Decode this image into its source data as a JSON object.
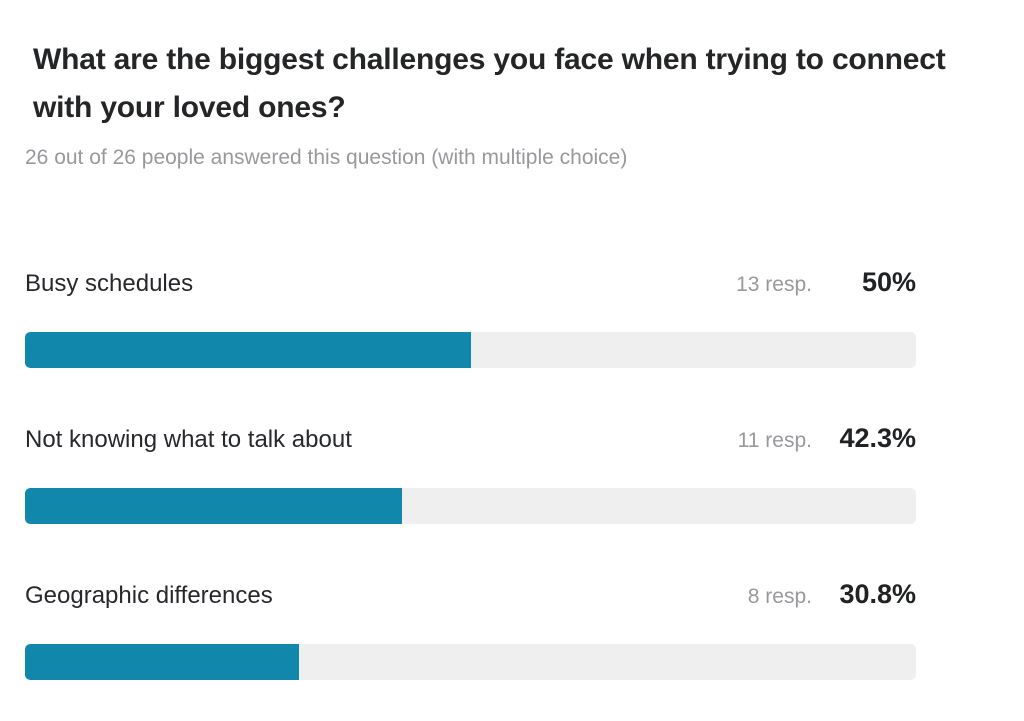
{
  "question": {
    "title": "What are the biggest challenges you face when trying to connect with your loved ones?",
    "subtitle": "26 out of 26 people answered this question (with multiple choice)"
  },
  "chart_data": {
    "type": "bar",
    "orientation": "horizontal",
    "title": "What are the biggest challenges you face when trying to connect with your loved ones?",
    "answered": 26,
    "total_people": 26,
    "categories": [
      "Busy schedules",
      "Not knowing what to talk about",
      "Geographic differences"
    ],
    "series": [
      {
        "name": "responses",
        "values": [
          13,
          11,
          8
        ]
      },
      {
        "name": "percentage",
        "values": [
          50,
          42.3,
          30.8
        ]
      }
    ],
    "xlim": [
      0,
      100
    ],
    "bar_color": "#1287AC",
    "track_color": "#EFEFF0",
    "grid": false,
    "legend": false
  },
  "rows": [
    {
      "label": "Busy schedules",
      "resp": "13 resp.",
      "percent": "50%",
      "value": 50
    },
    {
      "label": "Not knowing what to talk about",
      "resp": "11 resp.",
      "percent": "42.3%",
      "value": 42.3
    },
    {
      "label": "Geographic differences",
      "resp": "8 resp.",
      "percent": "30.8%",
      "value": 30.8
    }
  ]
}
